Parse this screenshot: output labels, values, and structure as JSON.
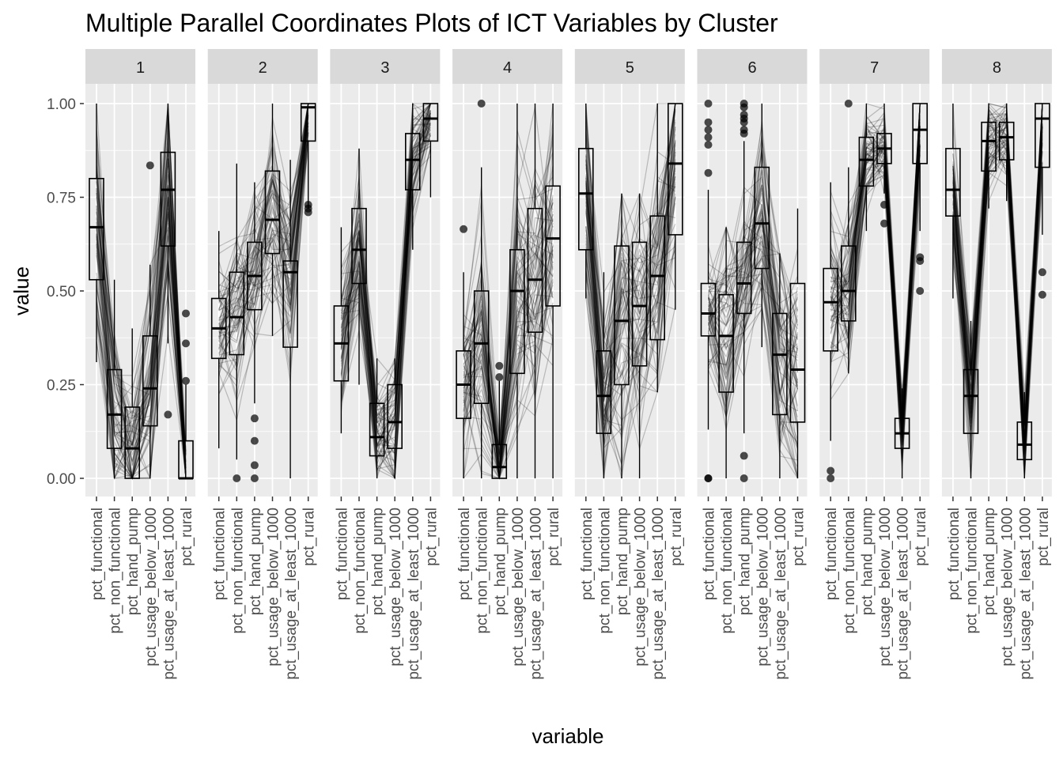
{
  "chart_data": {
    "type": "parallel-coordinates",
    "title": "Multiple Parallel Coordinates Plots of ICT Variables by Cluster",
    "xlabel": "variable",
    "ylabel": "value",
    "ylim": [
      0,
      1
    ],
    "y_ticks": [
      "0.00",
      "0.25",
      "0.50",
      "0.75",
      "1.00"
    ],
    "y_tick_values": [
      0,
      0.25,
      0.5,
      0.75,
      1
    ],
    "variables": [
      "pct_functional",
      "pct_non_functional",
      "pct_hand_pump",
      "pct_usage_below_1000",
      "pct_usage_at_least_1000",
      "pct_rural"
    ],
    "panel_background": "#ebebeb",
    "strip_background": "#d9d9d9",
    "line_color": "#000000",
    "facets": [
      {
        "label": "1",
        "medians": [
          0.67,
          0.17,
          0.08,
          0.24,
          0.77,
          0.0
        ],
        "q1": [
          0.53,
          0.08,
          0.0,
          0.14,
          0.62,
          0.0
        ],
        "q3": [
          0.8,
          0.29,
          0.19,
          0.38,
          0.87,
          0.1
        ],
        "lo": [
          0.31,
          0.0,
          0.0,
          0.0,
          0.36,
          0.0
        ],
        "hi": [
          1.0,
          0.53,
          0.4,
          0.57,
          1.0,
          0.25
        ],
        "outliers": [
          [
            3,
            0.835
          ],
          [
            4,
            0.17
          ],
          [
            5,
            0.44
          ],
          [
            5,
            0.36
          ],
          [
            5,
            0.26
          ]
        ]
      },
      {
        "label": "2",
        "medians": [
          0.4,
          0.43,
          0.54,
          0.69,
          0.55,
          0.99
        ],
        "q1": [
          0.32,
          0.33,
          0.45,
          0.6,
          0.35,
          0.9
        ],
        "q3": [
          0.48,
          0.55,
          0.63,
          0.82,
          0.58,
          1.0
        ],
        "lo": [
          0.08,
          0.05,
          0.2,
          0.38,
          0.0,
          0.72
        ],
        "hi": [
          0.66,
          0.84,
          0.79,
          1.0,
          0.85,
          1.0
        ],
        "outliers": [
          [
            1,
            0.0
          ],
          [
            2,
            0.16
          ],
          [
            2,
            0.1
          ],
          [
            2,
            0.035
          ],
          [
            2,
            0.0
          ],
          [
            5,
            0.73
          ],
          [
            5,
            0.72
          ],
          [
            5,
            0.71
          ]
        ]
      },
      {
        "label": "3",
        "medians": [
          0.36,
          0.61,
          0.11,
          0.15,
          0.85,
          0.96
        ],
        "q1": [
          0.26,
          0.52,
          0.06,
          0.08,
          0.77,
          0.9
        ],
        "q3": [
          0.46,
          0.72,
          0.2,
          0.25,
          0.92,
          1.0
        ],
        "lo": [
          0.12,
          0.25,
          0.0,
          0.0,
          0.61,
          0.75
        ],
        "hi": [
          0.67,
          0.88,
          0.32,
          0.32,
          1.0,
          1.0
        ],
        "outliers": []
      },
      {
        "label": "4",
        "medians": [
          0.25,
          0.36,
          0.03,
          0.5,
          0.53,
          0.64
        ],
        "q1": [
          0.16,
          0.2,
          0.0,
          0.28,
          0.39,
          0.46
        ],
        "q3": [
          0.34,
          0.5,
          0.09,
          0.61,
          0.72,
          0.78
        ],
        "lo": [
          0.0,
          0.0,
          0.0,
          0.0,
          0.0,
          0.0
        ],
        "hi": [
          0.55,
          0.83,
          0.26,
          1.0,
          1.0,
          1.0
        ],
        "outliers": [
          [
            0,
            0.665
          ],
          [
            1,
            1.0
          ],
          [
            2,
            0.3
          ],
          [
            2,
            0.27
          ]
        ]
      },
      {
        "label": "5",
        "medians": [
          0.76,
          0.22,
          0.42,
          0.46,
          0.54,
          0.84
        ],
        "q1": [
          0.61,
          0.12,
          0.25,
          0.3,
          0.37,
          0.65
        ],
        "q3": [
          0.88,
          0.34,
          0.62,
          0.63,
          0.7,
          1.0
        ],
        "lo": [
          0.48,
          0.0,
          0.0,
          0.0,
          0.23,
          0.45
        ],
        "hi": [
          1.0,
          0.55,
          0.76,
          0.76,
          1.0,
          1.0
        ],
        "outliers": []
      },
      {
        "label": "6",
        "medians": [
          0.44,
          0.38,
          0.52,
          0.68,
          0.33,
          0.29
        ],
        "q1": [
          0.38,
          0.23,
          0.44,
          0.56,
          0.17,
          0.15
        ],
        "q3": [
          0.52,
          0.49,
          0.63,
          0.83,
          0.44,
          0.52
        ],
        "lo": [
          0.13,
          0.0,
          0.12,
          0.35,
          0.0,
          0.0
        ],
        "hi": [
          0.77,
          0.67,
          0.9,
          1.0,
          0.6,
          0.72
        ],
        "outliers": [
          [
            0,
            1.0
          ],
          [
            0,
            0.95
          ],
          [
            0,
            0.93
          ],
          [
            0,
            0.91
          ],
          [
            0,
            0.89
          ],
          [
            0,
            0.815
          ],
          [
            0,
            0.0
          ],
          [
            0,
            0.0
          ],
          [
            2,
            1.0
          ],
          [
            2,
            0.99
          ],
          [
            2,
            0.97
          ],
          [
            2,
            0.96
          ],
          [
            2,
            0.95
          ],
          [
            2,
            0.93
          ],
          [
            2,
            0.92
          ],
          [
            2,
            0.06
          ],
          [
            2,
            0.0
          ]
        ]
      },
      {
        "label": "7",
        "medians": [
          0.47,
          0.5,
          0.85,
          0.88,
          0.12,
          0.93
        ],
        "q1": [
          0.34,
          0.42,
          0.78,
          0.84,
          0.08,
          0.84
        ],
        "q3": [
          0.56,
          0.62,
          0.91,
          0.92,
          0.16,
          1.0
        ],
        "lo": [
          0.1,
          0.28,
          0.66,
          0.76,
          0.0,
          0.66
        ],
        "hi": [
          0.79,
          0.83,
          1.0,
          1.0,
          0.24,
          1.0
        ],
        "outliers": [
          [
            0,
            0.02
          ],
          [
            0,
            0.0
          ],
          [
            1,
            1.0
          ],
          [
            3,
            0.73
          ],
          [
            3,
            0.68
          ],
          [
            5,
            0.59
          ],
          [
            5,
            0.58
          ],
          [
            5,
            0.5
          ]
        ]
      },
      {
        "label": "8",
        "medians": [
          0.77,
          0.22,
          0.9,
          0.91,
          0.09,
          0.96
        ],
        "q1": [
          0.7,
          0.12,
          0.82,
          0.85,
          0.05,
          0.83
        ],
        "q3": [
          0.88,
          0.29,
          0.95,
          0.95,
          0.15,
          1.0
        ],
        "lo": [
          0.48,
          0.0,
          0.72,
          0.74,
          0.0,
          0.65
        ],
        "hi": [
          1.0,
          0.42,
          1.0,
          1.0,
          0.23,
          1.0
        ],
        "outliers": [
          [
            5,
            0.55
          ],
          [
            5,
            0.49
          ]
        ]
      }
    ]
  }
}
